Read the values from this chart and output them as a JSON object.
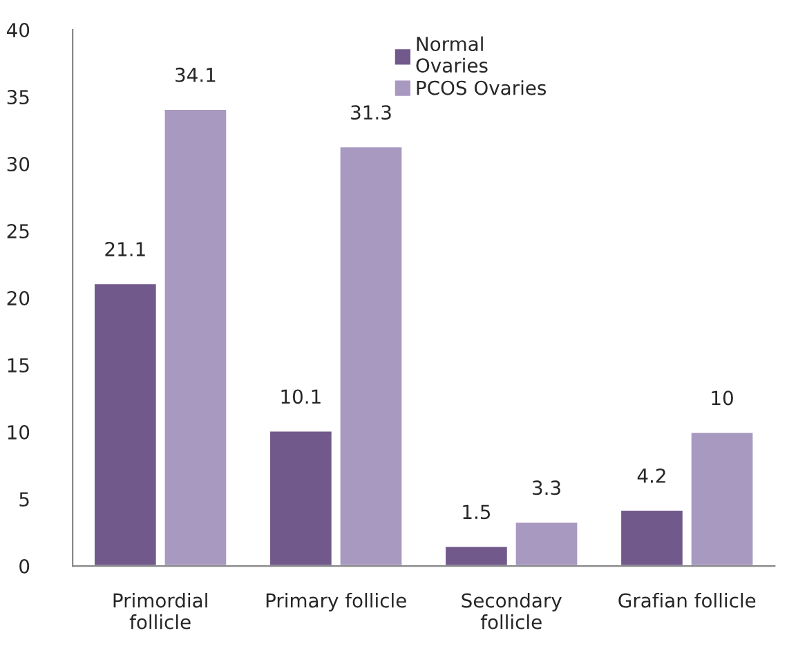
{
  "chart_data": {
    "type": "bar",
    "categories": [
      "Primordial\nfollicle",
      "Primary follicle",
      "Secondary\nfollicle",
      "Grafian follicle"
    ],
    "series": [
      {
        "name": "Normal\nOvaries",
        "color": "#72598c",
        "values": [
          21.1,
          10.1,
          1.5,
          4.2
        ]
      },
      {
        "name": "PCOS Ovaries",
        "color": "#a899c0",
        "values": [
          34.1,
          31.3,
          3.3,
          10
        ]
      }
    ],
    "ylim": [
      0,
      40
    ],
    "yticks": [
      0,
      5,
      10,
      15,
      20,
      25,
      30,
      35,
      40
    ],
    "data_labels": true,
    "grid": false,
    "legend": "top right"
  }
}
